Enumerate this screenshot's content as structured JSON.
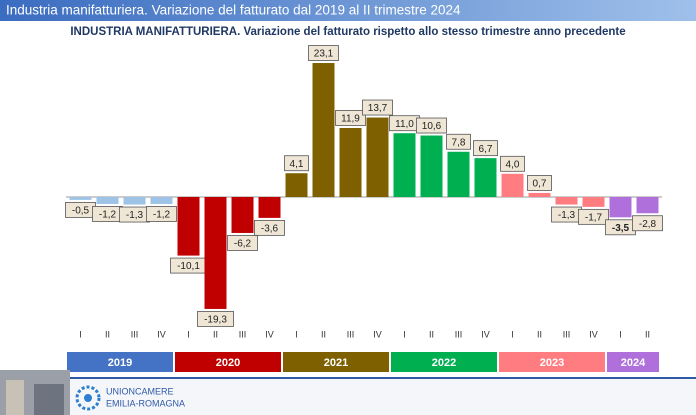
{
  "header": {
    "title": "Industria manifatturiera. Variazione del fatturato dal 2019 al II trimestre 2024"
  },
  "chart_data": {
    "type": "bar",
    "title": "INDUSTRIA MANIFATTURIERA. Variazione del fatturato rispetto allo stesso trimestre anno precedente",
    "years": [
      {
        "name": "2019",
        "color": "#4472c4",
        "bar_color": "#9dc3e6",
        "quarters": [
          "I",
          "II",
          "III",
          "IV"
        ],
        "values": [
          -0.5,
          -1.2,
          -1.3,
          -1.2
        ],
        "value_labels": [
          "-0,5",
          "-1,2",
          "-1,3",
          "-1,2"
        ]
      },
      {
        "name": "2020",
        "color": "#c00000",
        "bar_color": "#c00000",
        "quarters": [
          "I",
          "II",
          "III",
          "IV"
        ],
        "values": [
          -10.1,
          -19.3,
          -6.2,
          -3.6
        ],
        "value_labels": [
          "-10,1",
          "-19,3",
          "-6,2",
          "-3,6"
        ]
      },
      {
        "name": "2021",
        "color": "#7f6000",
        "bar_color": "#7f6000",
        "quarters": [
          "I",
          "II",
          "III",
          "IV"
        ],
        "values": [
          4.1,
          23.1,
          11.9,
          13.7
        ],
        "value_labels": [
          "4,1",
          "23,1",
          "11,9",
          "13,7"
        ]
      },
      {
        "name": "2022",
        "color": "#00b050",
        "bar_color": "#00b050",
        "quarters": [
          "I",
          "II",
          "III",
          "IV"
        ],
        "values": [
          11.0,
          10.6,
          7.8,
          6.7
        ],
        "value_labels": [
          "11,0",
          "10,6",
          "7,8",
          "6,7"
        ]
      },
      {
        "name": "2023",
        "color": "#ff7c80",
        "bar_color": "#ff7c80",
        "quarters": [
          "I",
          "II",
          "III",
          "IV"
        ],
        "values": [
          4.0,
          0.7,
          -1.3,
          -1.7
        ],
        "value_labels": [
          "4,0",
          "0,7",
          "-1,3",
          "-1,7"
        ]
      },
      {
        "name": "2024",
        "color": "#b070dc",
        "bar_color": "#b070dc",
        "quarters": [
          "I",
          "II"
        ],
        "values": [
          -3.5,
          -2.8
        ],
        "value_labels": [
          "-3,5",
          "-2,8"
        ]
      }
    ]
  },
  "footer": {
    "logo_line1": "UNIONCAMERE",
    "logo_line2": "EMILIA-ROMAGNA"
  }
}
